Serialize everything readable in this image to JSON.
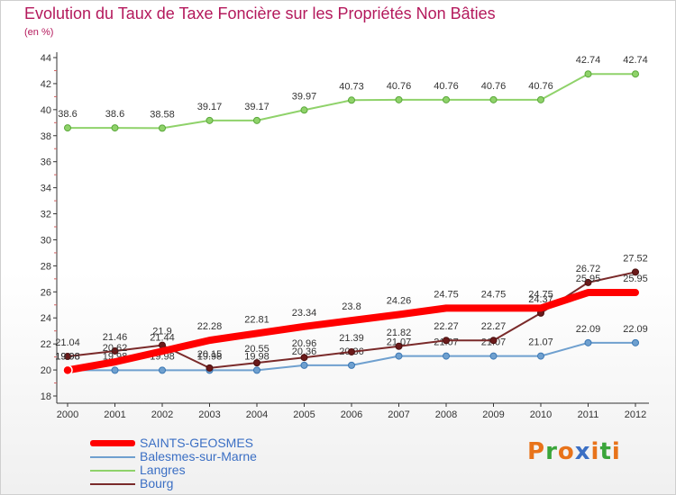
{
  "title": "Evolution du Taux de Taxe Foncière sur les Propriétés Non Bâties",
  "unit_label": "(en %)",
  "logo": {
    "letters": [
      "P",
      "r",
      "o",
      "x",
      "i",
      "t",
      "i"
    ],
    "colors": [
      "#e8731a",
      "#3aa53a",
      "#e8731a",
      "#3b6fc4",
      "#e8731a",
      "#3aa53a",
      "#e8731a"
    ]
  },
  "chart_data": {
    "type": "line",
    "title": "Evolution du Taux de Taxe Foncière sur les Propriétés Non Bâties",
    "ylabel": "(en %)",
    "xlabel": "",
    "x": [
      "2000",
      "2001",
      "2002",
      "2003",
      "2004",
      "2005",
      "2006",
      "2007",
      "2008",
      "2009",
      "2010",
      "2011",
      "2012"
    ],
    "ylim": [
      18,
      44
    ],
    "yticks": [
      18,
      20,
      22,
      24,
      26,
      28,
      30,
      32,
      34,
      36,
      38,
      40,
      42,
      44
    ],
    "grid": false,
    "legend_position": "bottom-left",
    "series": [
      {
        "name": "SAINTS-GEOSMES",
        "color": "#ff0000",
        "values": [
          19.98,
          20.62,
          21.44,
          22.28,
          22.81,
          23.34,
          23.8,
          24.26,
          24.75,
          24.75,
          24.75,
          25.95,
          25.95
        ],
        "labels": [
          "19.98",
          "20.62",
          "21.44",
          "22.28",
          "22.81",
          "23.34",
          "23.8",
          "24.26",
          "24.75",
          "24.75",
          "24.75",
          "25.95",
          "25.95"
        ]
      },
      {
        "name": "Balesmes-sur-Marne",
        "color": "#6fa0cf",
        "values": [
          19.98,
          19.98,
          19.98,
          19.98,
          19.98,
          20.36,
          20.36,
          21.07,
          21.07,
          21.07,
          21.07,
          22.09,
          22.09
        ],
        "labels": [
          "19.98",
          "19.98",
          "19.98",
          "19.98",
          "19.98",
          "20.36",
          "20.36",
          "21.07",
          "21.07",
          "21.07",
          "21.07",
          "22.09",
          "22.09"
        ]
      },
      {
        "name": "Langres",
        "color": "#8fd26a",
        "values": [
          38.6,
          38.6,
          38.58,
          39.17,
          39.17,
          39.97,
          40.73,
          40.76,
          40.76,
          40.76,
          40.76,
          42.74,
          42.74
        ],
        "labels": [
          "38.6",
          "38.6",
          "38.58",
          "39.17",
          "39.17",
          "39.97",
          "40.73",
          "40.76",
          "40.76",
          "40.76",
          "40.76",
          "42.74",
          "42.74"
        ]
      },
      {
        "name": "Bourg",
        "color": "#7a2a2a",
        "values": [
          21.04,
          21.46,
          21.9,
          20.15,
          20.55,
          20.96,
          21.39,
          21.82,
          22.27,
          22.27,
          24.37,
          26.72,
          27.52
        ],
        "labels": [
          "21.04",
          "21.46",
          "21.9",
          "20.15",
          "20.55",
          "20.96",
          "21.39",
          "21.82",
          "22.27",
          "22.27",
          "24.37",
          "26.72",
          "27.52"
        ]
      }
    ]
  }
}
